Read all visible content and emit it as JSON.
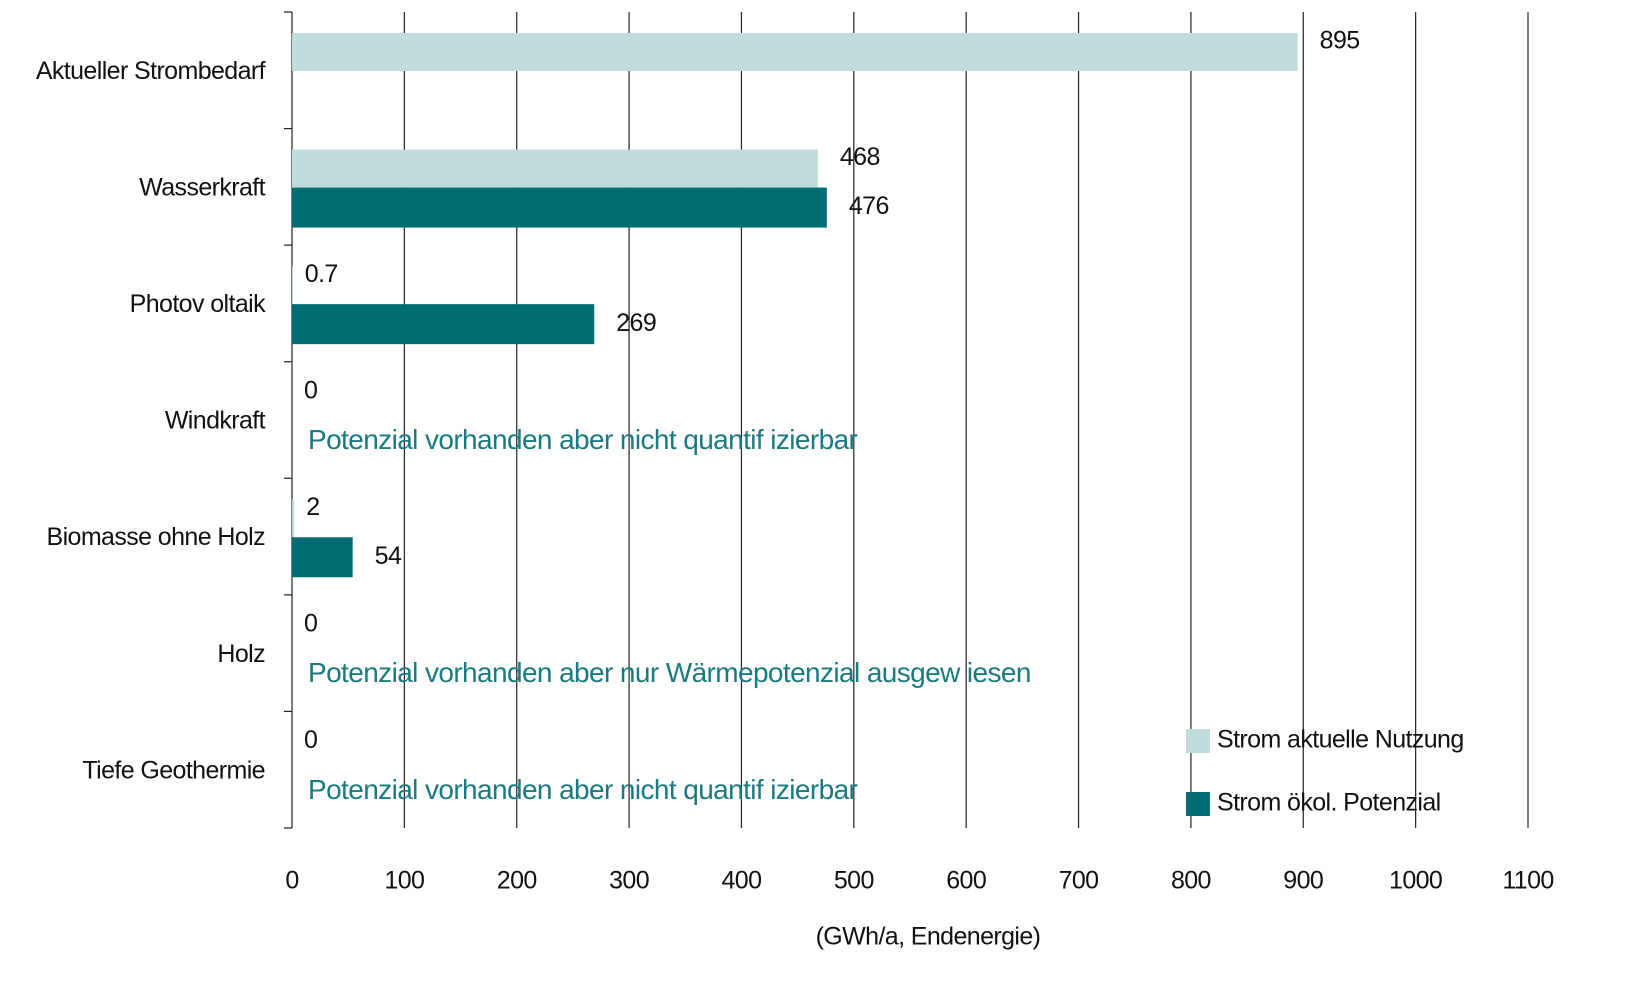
{
  "chart_data": {
    "type": "hbar",
    "categories": [
      "Aktueller Strombedarf",
      "Wasserkraft",
      "Photov oltaik",
      "Windkraft",
      "Biomasse ohne Holz",
      "Holz",
      "Tiefe Geothermie"
    ],
    "series": [
      {
        "name": "Strom aktuelle Nutzung",
        "color": "#c0dcdc",
        "values": [
          895,
          468,
          0.7,
          0,
          2,
          0,
          0
        ]
      },
      {
        "name": "Strom ökol. Potenzial",
        "color": "#006d75",
        "values": [
          null,
          476,
          269,
          null,
          54,
          null,
          null
        ]
      }
    ],
    "annotations": [
      null,
      null,
      null,
      "Potenzial vorhanden aber nicht quantif izierbar",
      null,
      "Potenzial vorhanden aber nur Wärmepotenzial ausgew iesen",
      "Potenzial vorhanden aber nicht quantif izierbar"
    ],
    "annotation_color": "#1a7a80",
    "x_label": "(GWh/a,  Endenergie)",
    "xlim": [
      0,
      1100
    ],
    "xticks": [
      0,
      100,
      200,
      300,
      400,
      500,
      600,
      700,
      800,
      900,
      1000,
      1100
    ],
    "grid": true,
    "legend": "lower right"
  }
}
